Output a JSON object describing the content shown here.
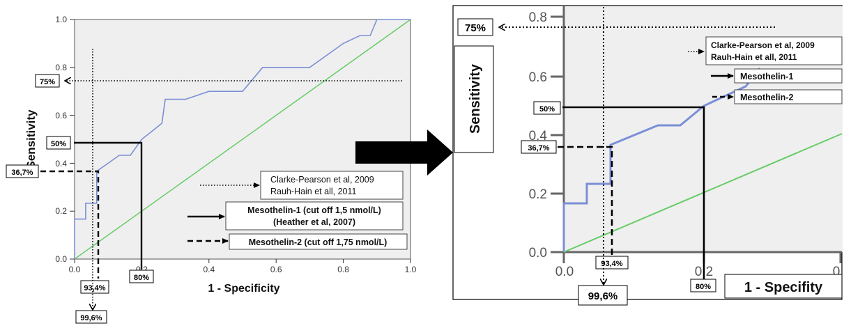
{
  "colors": {
    "plot_bg": "#efefef",
    "roc": "#7b8fd6",
    "reference": "#66cc66",
    "annotation": "#000000"
  },
  "chart_data": [
    {
      "type": "line",
      "xlabel": "1 - Specificity",
      "ylabel": "Sensitivity",
      "xlim": [
        0.0,
        1.0
      ],
      "ylim": [
        0.0,
        1.0
      ],
      "x_ticks": [
        "0.0",
        "0.2",
        "0.4",
        "0.6",
        "0.8",
        "1.0"
      ],
      "y_ticks": [
        "0.0",
        "0.2",
        "0.4",
        "0.6",
        "0.8",
        "1.0"
      ],
      "grid": false,
      "series": [
        {
          "kind": "roc",
          "points": [
            [
              0,
              0
            ],
            [
              0,
              0.167
            ],
            [
              0.033,
              0.167
            ],
            [
              0.033,
              0.233
            ],
            [
              0.066,
              0.233
            ],
            [
              0.066,
              0.367
            ],
            [
              0.1,
              0.4
            ],
            [
              0.133,
              0.433
            ],
            [
              0.166,
              0.433
            ],
            [
              0.2,
              0.5
            ],
            [
              0.23,
              0.533
            ],
            [
              0.26,
              0.567
            ],
            [
              0.27,
              0.667
            ],
            [
              0.33,
              0.667
            ],
            [
              0.4,
              0.7
            ],
            [
              0.5,
              0.7
            ],
            [
              0.52,
              0.733
            ],
            [
              0.54,
              0.767
            ],
            [
              0.56,
              0.8
            ],
            [
              0.7,
              0.8
            ],
            [
              0.8,
              0.9
            ],
            [
              0.85,
              0.933
            ],
            [
              0.88,
              0.933
            ],
            [
              0.9,
              1
            ],
            [
              1,
              1
            ]
          ]
        },
        {
          "kind": "reference",
          "points": [
            [
              0,
              0
            ],
            [
              1,
              1
            ]
          ]
        }
      ],
      "annotations": {
        "sens_75": "75%",
        "sens_50": "50%",
        "sens_367": "36,7%",
        "spec_80": "80%",
        "spec_934": "93,4%",
        "spec_996": "99,6%"
      },
      "legend": {
        "dotted_line1": "Clarke-Pearson et al, 2009",
        "dotted_line2": "Rauh-Hain et all, 2011",
        "solid_line1": "Mesothelin-1 (cut off 1,5 nmol/L)",
        "solid_line2": "(Heather et al, 2007)",
        "dashed": "Mesothelin-2 (cut off 1,75 nmol/L)"
      }
    },
    {
      "type": "line",
      "xlabel": "1 - Specifity",
      "ylabel": "Sensitivity",
      "x_ticks": [
        "0.0",
        "0.2",
        "0"
      ],
      "y_ticks": [
        "0.0",
        "0.2",
        "0.4",
        "0.6",
        "0.8"
      ],
      "grid": false,
      "annotations": {
        "sens_75": "75%",
        "sens_50": "50%",
        "sens_367": "36,7%",
        "spec_80": "80%",
        "spec_934": "93,4%",
        "spec_996": "99,6%"
      },
      "legend": {
        "dotted_line1": "Clarke-Pearson et al, 2009",
        "dotted_line2": "Rauh-Hain et all, 2011",
        "solid": "Mesothelin-1",
        "dashed": "Mesothelin-2"
      }
    }
  ]
}
